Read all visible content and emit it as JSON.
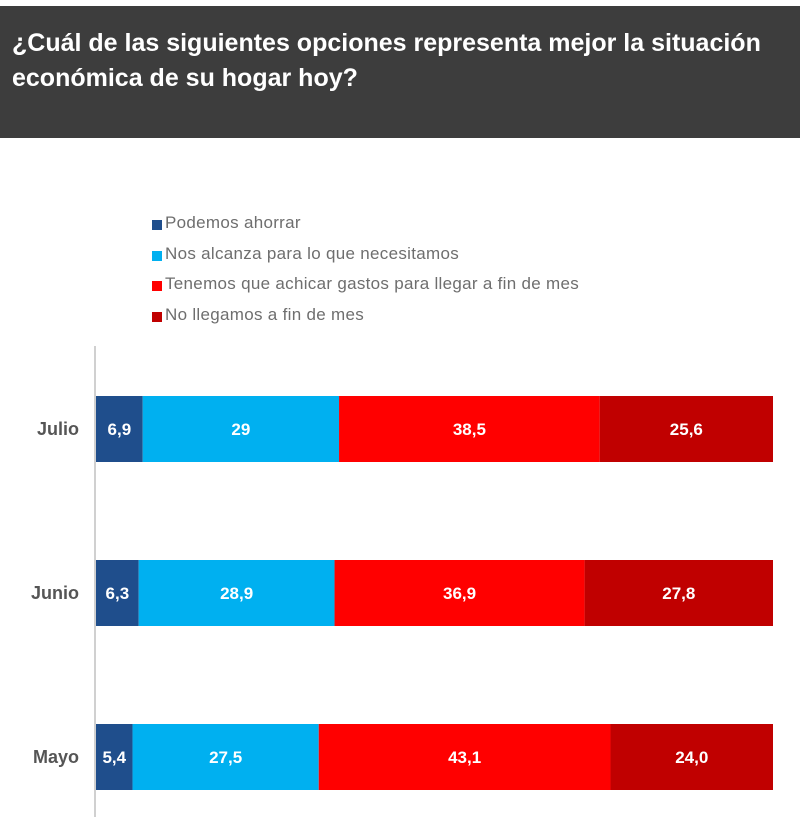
{
  "header": {
    "title": "¿Cuál de las siguientes opciones representa mejor la situación económica de su hogar hoy?"
  },
  "chart_data": {
    "type": "bar",
    "orientation": "horizontal",
    "stacked": true,
    "title": "¿Cuál de las siguientes opciones representa mejor la situación económica de su hogar hoy?",
    "categories": [
      "Julio",
      "Junio",
      "Mayo"
    ],
    "series": [
      {
        "name": "Podemos ahorrar",
        "color": "#1f4e8c",
        "values": [
          6.9,
          6.3,
          5.4
        ],
        "labels": [
          "6,9",
          "6,3",
          "5,4"
        ]
      },
      {
        "name": "Nos alcanza para lo que necesitamos",
        "color": "#00b0f0",
        "values": [
          29,
          28.9,
          27.5
        ],
        "labels": [
          "29",
          "28,9",
          "27,5"
        ]
      },
      {
        "name": "Tenemos que achicar gastos para llegar a fin de mes",
        "color": "#ff0000",
        "values": [
          38.5,
          36.9,
          43.1
        ],
        "labels": [
          "38,5",
          "36,9",
          "43,1"
        ]
      },
      {
        "name": "No llegamos a fin de mes",
        "color": "#c00000",
        "values": [
          25.6,
          27.8,
          24.0
        ],
        "labels": [
          "25,6",
          "27,8",
          "24,0"
        ]
      }
    ],
    "legend_position": "top",
    "grid": false
  }
}
